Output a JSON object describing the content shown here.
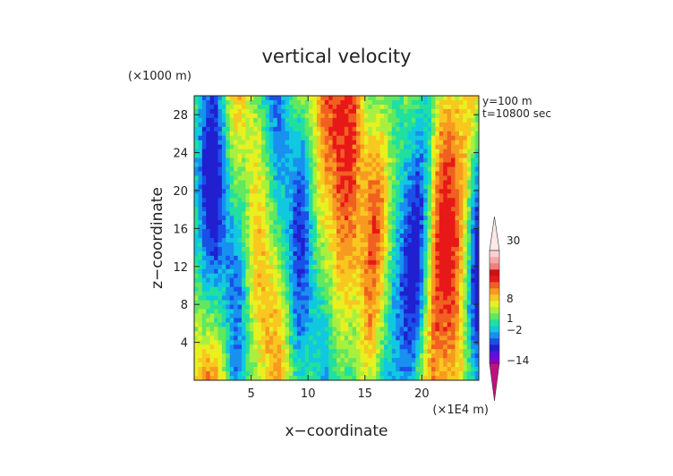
{
  "chart_data": {
    "type": "heatmap",
    "title": "vertical velocity",
    "xlabel": "x−coordinate",
    "ylabel": "z−coordinate",
    "x_unit": "(×1E4 m)",
    "y_unit": "(×1000 m)",
    "x_range": [
      0,
      25
    ],
    "y_range": [
      0,
      30
    ],
    "x_ticks": [
      5,
      10,
      15,
      20
    ],
    "y_ticks": [
      4,
      8,
      12,
      16,
      20,
      24,
      28
    ],
    "annotations": [
      "y=100 m",
      "t=10800 sec"
    ],
    "colorbar": {
      "tick_labels": [
        {
          "value": 30,
          "label": "30"
        },
        {
          "value": 8,
          "label": "8"
        },
        {
          "value": 1,
          "label": "1"
        },
        {
          "value": -2,
          "label": "−2"
        },
        {
          "value": -14,
          "label": "−14"
        }
      ],
      "colors": [
        "#c01080",
        "#8a00c8",
        "#5a10e0",
        "#2020d0",
        "#1a50e8",
        "#1890f0",
        "#10c8e0",
        "#20e0a0",
        "#60e860",
        "#a8f040",
        "#e8f020",
        "#f8c820",
        "#f89a20",
        "#f06020",
        "#e81818",
        "#d01010",
        "#f08080",
        "#f8a8a8",
        "#fcd0d0",
        "#ffe8e8"
      ]
    }
  }
}
